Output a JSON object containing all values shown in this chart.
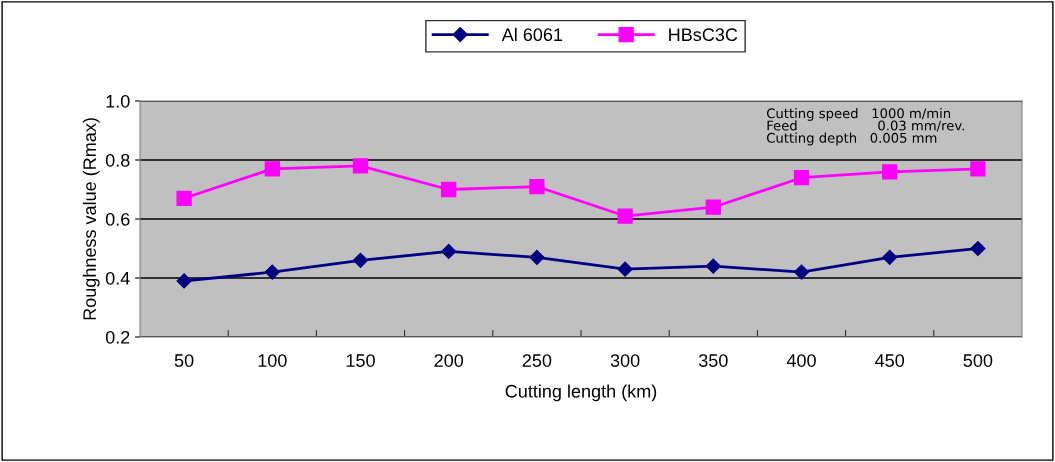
{
  "chart_data": {
    "type": "line",
    "xlabel": "Cutting length (km)",
    "ylabel": "Roughness value (Rmax)",
    "categories": [
      "50",
      "100",
      "150",
      "200",
      "250",
      "300",
      "350",
      "400",
      "450",
      "500"
    ],
    "series": [
      {
        "name": "Al 6061",
        "color": "#000080",
        "marker": "diamond",
        "values": [
          0.39,
          0.42,
          0.46,
          0.49,
          0.47,
          0.43,
          0.44,
          0.42,
          0.47,
          0.5
        ]
      },
      {
        "name": "HBsC3C",
        "color": "#ff00ff",
        "marker": "square",
        "values": [
          0.67,
          0.77,
          0.78,
          0.7,
          0.71,
          0.61,
          0.64,
          0.74,
          0.76,
          0.77
        ]
      }
    ],
    "ylim": [
      0.2,
      1.0
    ],
    "yticks": [
      {
        "value": 0.2,
        "label": "0.2"
      },
      {
        "value": 0.4,
        "label": "0.4"
      },
      {
        "value": 0.6,
        "label": "0.6"
      },
      {
        "value": 0.8,
        "label": "0.8"
      },
      {
        "value": 1.0,
        "label": "1.0"
      }
    ],
    "grid": "y",
    "legend": "top",
    "line_style": "solid",
    "annotations": [
      "Cutting speed   1000 m/min\nFeed                   0.03 mm/rev.\nCutting depth   0.005 mm"
    ]
  }
}
